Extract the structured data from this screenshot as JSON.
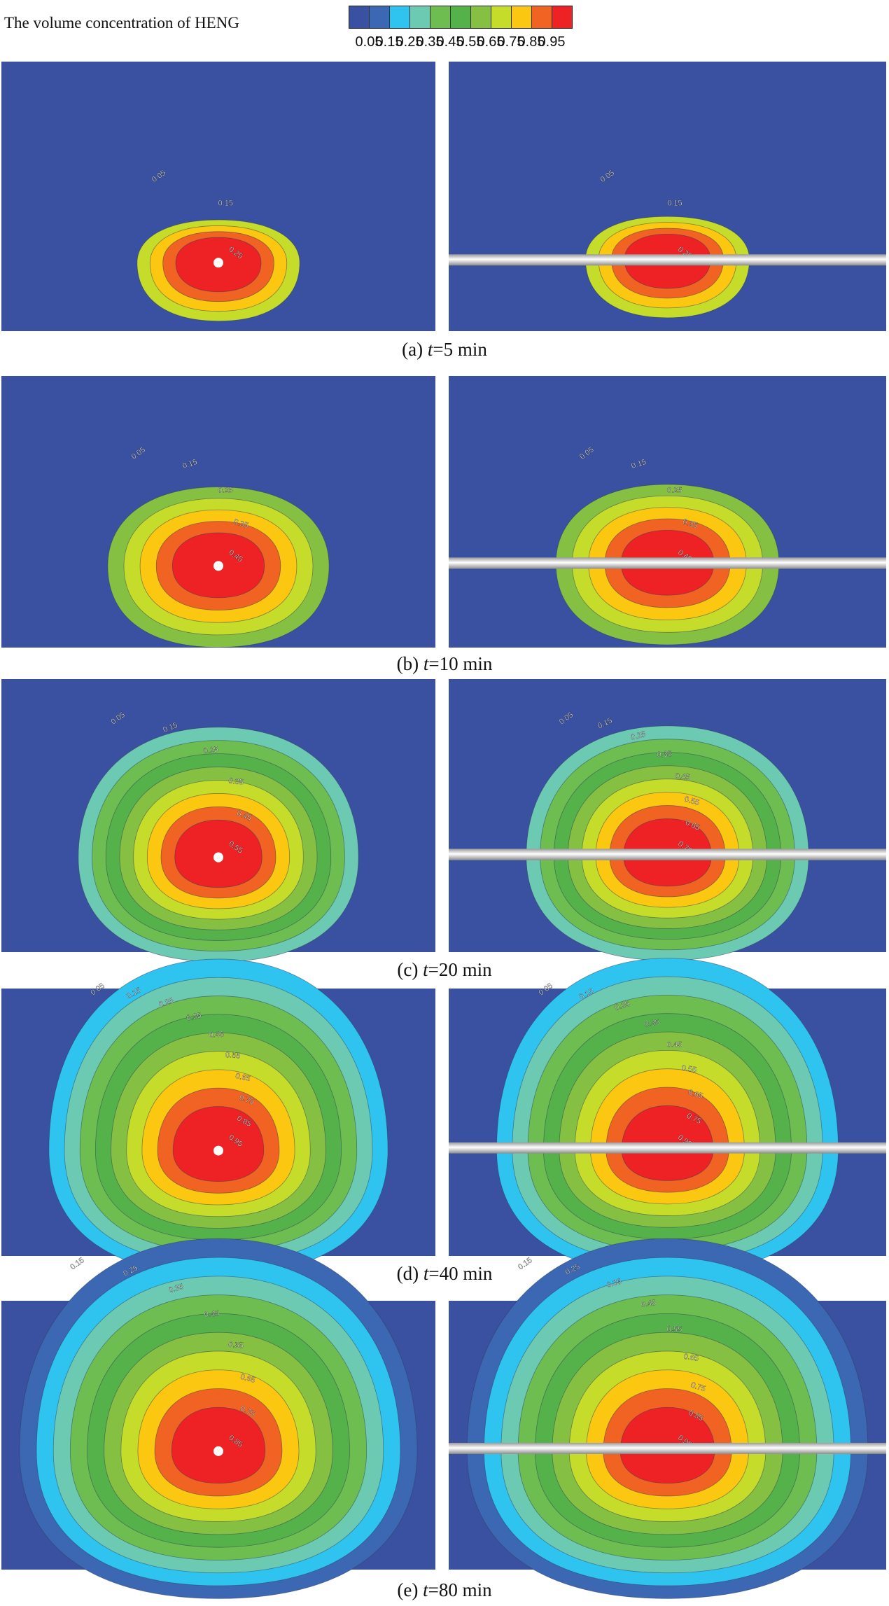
{
  "header": {
    "title": "The volume concentration of HENG"
  },
  "legend": {
    "levels": [
      {
        "label": "0.05",
        "color": "#3a50a1"
      },
      {
        "label": "0.15",
        "color": "#3b67b3"
      },
      {
        "label": "0.25",
        "color": "#2fc4ef"
      },
      {
        "label": "0.35",
        "color": "#6ccab3"
      },
      {
        "label": "0.45",
        "color": "#6dbd50"
      },
      {
        "label": "0.55",
        "color": "#55b14a"
      },
      {
        "label": "0.65",
        "color": "#86c043"
      },
      {
        "label": "0.75",
        "color": "#c6dc2a"
      },
      {
        "label": "0.85",
        "color": "#fbc711"
      },
      {
        "label": "0.95",
        "color": "#f16322"
      },
      {
        "label": "",
        "color": "#ee2125"
      }
    ]
  },
  "rows": [
    {
      "caption_prefix": "(a) ",
      "caption_var": "t",
      "caption_value": "=5 min",
      "bands": 5,
      "pipe_shift": 0.08,
      "left_labels": [
        "0.05",
        "0.15",
        "0.25"
      ],
      "right_labels": [
        "0.05",
        "0.15",
        "0.25"
      ]
    },
    {
      "caption_prefix": "(b) ",
      "caption_var": "t",
      "caption_value": "=10 min",
      "bands": 6,
      "pipe_shift": 0.06,
      "left_labels": [
        "0.05",
        "0.15",
        "0.25",
        "0.35",
        "0.45"
      ],
      "right_labels": [
        "0.05",
        "0.15",
        "0.25",
        "0.35",
        "0.45"
      ]
    },
    {
      "caption_prefix": "(c) ",
      "caption_var": "t",
      "caption_value": "=20 min",
      "bands": 9,
      "pipe_shift": 0.03,
      "left_labels": [
        "0.05",
        "0.15",
        "0.25",
        "0.35",
        "0.45",
        "0.55"
      ],
      "right_labels": [
        "0.05",
        "0.15",
        "0.25",
        "0.35",
        "0.45",
        "0.55",
        "0.65",
        "0.75"
      ]
    },
    {
      "caption_prefix": "(d) ",
      "caption_var": "t",
      "caption_value": "=40 min",
      "bands": 10,
      "pipe_shift": 0.02,
      "left_labels": [
        "0.05",
        "0.15",
        "0.25",
        "0.35",
        "0.45",
        "0.55",
        "0.65",
        "0.75",
        "0.85",
        "0.95"
      ],
      "right_labels": [
        "0.05",
        "0.15",
        "0.25",
        "0.35",
        "0.45",
        "0.55",
        "0.65",
        "0.75",
        "0.95"
      ]
    },
    {
      "caption_prefix": "(e) ",
      "caption_var": "t",
      "caption_value": "=80 min",
      "bands": 11,
      "pipe_shift": 0.0,
      "left_labels": [
        "0.15",
        "0.25",
        "0.35",
        "0.45",
        "0.55",
        "0.65",
        "0.75",
        "0.85"
      ],
      "right_labels": [
        "0.15",
        "0.25",
        "0.35",
        "0.45",
        "0.55",
        "0.65",
        "0.75",
        "0.85",
        "0.95"
      ]
    }
  ]
}
